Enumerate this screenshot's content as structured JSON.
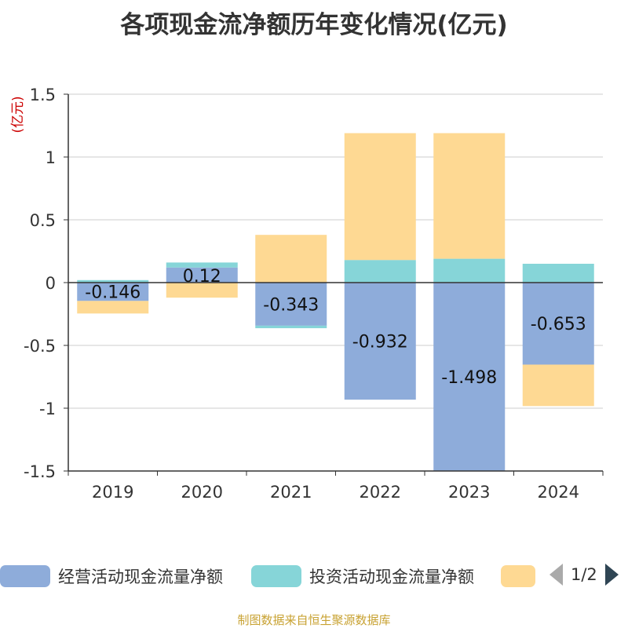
{
  "chart_data": {
    "type": "bar",
    "stacked": true,
    "title": "各项现金流净额历年变化情况(亿元)",
    "ylabel": "(亿元)",
    "ylim": [
      -1.5,
      1.5
    ],
    "yticks": [
      1.5,
      1,
      0.5,
      0,
      -0.5,
      -1,
      -1.5
    ],
    "ytick_labels": [
      "1.5",
      "1",
      "0.5",
      "0",
      "-0.5",
      "-1",
      "-1.5"
    ],
    "grid": true,
    "legend_position": "bottom",
    "categories": [
      "2019",
      "2020",
      "2021",
      "2022",
      "2023",
      "2024"
    ],
    "series": [
      {
        "name": "经营活动现金流量净额",
        "color": "#8eacda",
        "values": [
          -0.146,
          0.12,
          -0.343,
          -0.932,
          -1.498,
          -0.653
        ],
        "labels": [
          "-0.146",
          "0.12",
          "-0.343",
          "-0.932",
          "-1.498",
          "-0.653"
        ]
      },
      {
        "name": "投资活动现金流量净额",
        "color": "#86d5d8",
        "values": [
          0.02,
          0.04,
          -0.02,
          0.18,
          0.19,
          0.15
        ]
      },
      {
        "name": "",
        "color": "#fed993",
        "values": [
          -0.1,
          -0.12,
          0.38,
          1.01,
          1.0,
          -0.33
        ]
      }
    ]
  },
  "legend": {
    "items": [
      {
        "label": "经营活动现金流量净额",
        "color": "#8eacda"
      },
      {
        "label": "投资活动现金流量净额",
        "color": "#86d5d8"
      },
      {
        "label": "",
        "color": "#fed993"
      }
    ],
    "page_label": "1/2"
  },
  "colors": {
    "axis": "#333333",
    "grid": "#cccccc",
    "ylabel": "#cc0000",
    "source": "#c8a232"
  },
  "source": "制图数据来自恒生聚源数据库"
}
